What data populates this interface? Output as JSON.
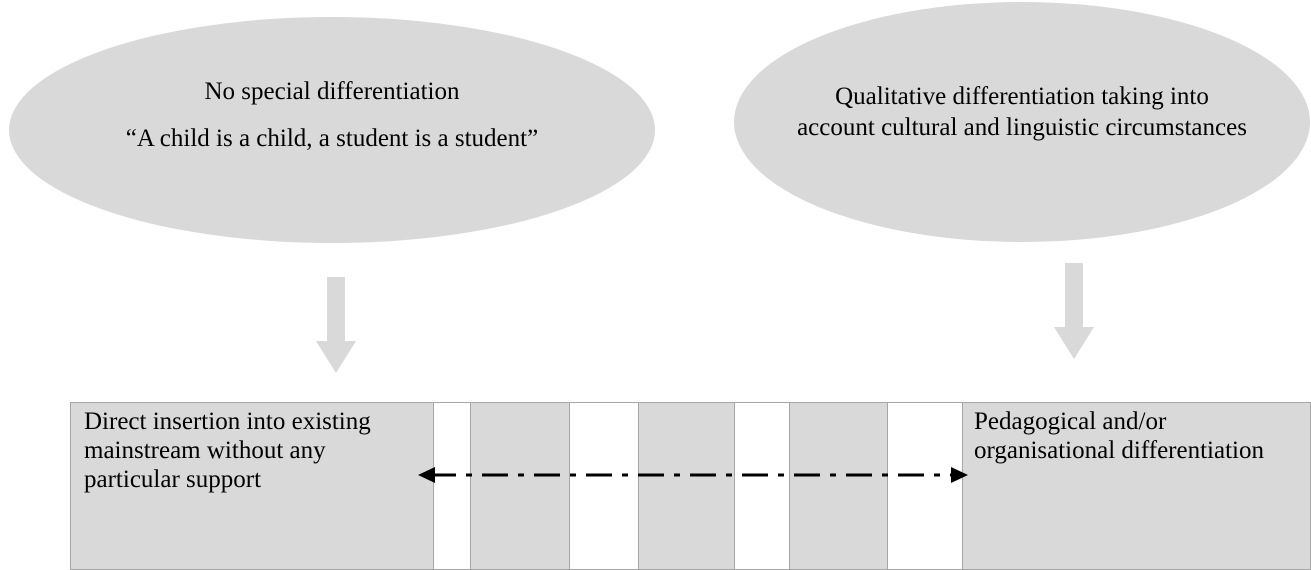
{
  "left_ellipse": {
    "title": "No special differentiation",
    "quote": "“A child is a child, a student is a student”"
  },
  "right_ellipse": {
    "text": "Qualitative differentiation taking into account cultural and linguistic circumstances"
  },
  "left_box": {
    "text": "Direct insertion into existing mainstream without any particular support"
  },
  "right_box": {
    "text": "Pedagogical and/or organisational differentiation"
  },
  "colors": {
    "fill": "#d9d9d9",
    "border": "#a6a6a6",
    "arrow": "#d9d9d9",
    "connector": "#000000"
  }
}
